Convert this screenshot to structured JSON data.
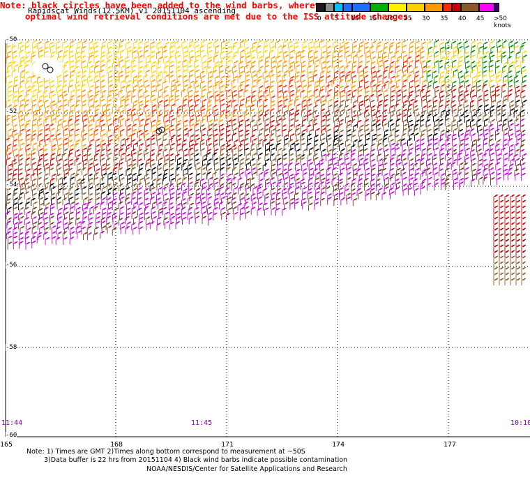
{
  "title": "Rapidscat Winds(12.5KM) v1 20151104 ascending",
  "note_lines": [
    "Note: black circles have been added to the wind barbs, wherever less than",
    "optimal wind retrieval conditions are met due to the ISS attitude changes."
  ],
  "legend": {
    "labels": [
      "0",
      "5",
      "10",
      "15",
      "20",
      "25",
      "30",
      "35",
      "40",
      "45",
      ">50 knots"
    ],
    "colors": [
      "#1a1a1a",
      "#8c8c8c",
      "#00bfff",
      "#1f6fff",
      "#00b000",
      "#fff200",
      "#ffd000",
      "#ff9900",
      "#ff2a00",
      "#c80000",
      "#8b5a2b",
      "#ff00ff",
      "#9b00d0",
      "#3c0070"
    ]
  },
  "axes": {
    "lat_labels": [
      "-50",
      "-52",
      "-54",
      "-56",
      "-58",
      "-60"
    ],
    "lon_labels": [
      "165",
      "168",
      "171",
      "174",
      "177"
    ]
  },
  "times": [
    "11:44",
    "11:45",
    "10:10"
  ],
  "footnotes": [
    "Note: 1) Times are GMT 2)Times along bottom correspond to measurement at ~50S",
    "3)Data buffer is 22 hrs from 20151104 4) Black wind barbs indicate possible contamination"
  ],
  "credit": "NOAA/NESDIS/Center for Satellite Applications and Research"
}
